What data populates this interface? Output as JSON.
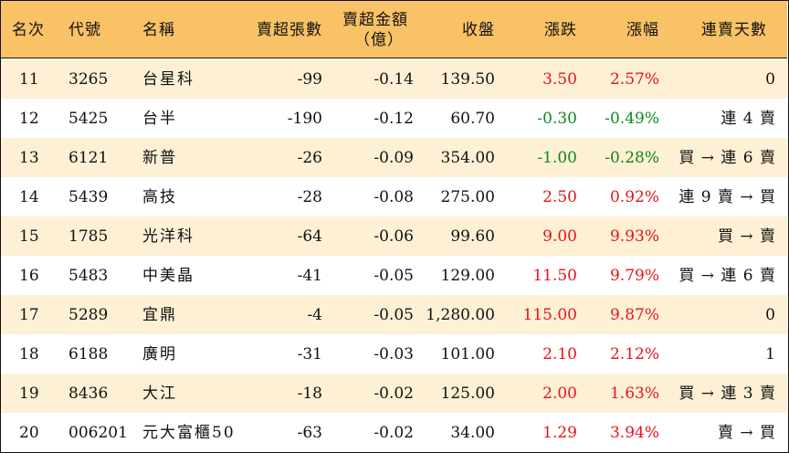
{
  "header": {
    "rank": "名次",
    "code": "代號",
    "name": "名稱",
    "oversold_lots": "賣超張數",
    "oversold_amount_line1": "賣超金額",
    "oversold_amount_line2": "（億）",
    "close": "收盤",
    "change": "漲跌",
    "change_pct": "漲幅",
    "consecutive_days": "連賣天數"
  },
  "colors": {
    "header_bg": "#f9c266",
    "stripe_bg": "#fdf0d5",
    "up": "#e8131a",
    "down": "#0d8a1a"
  },
  "rows": [
    {
      "rank": "11",
      "code": "3265",
      "name": "台星科",
      "lots": "-99",
      "amount": "-0.14",
      "close": "139.50",
      "change": "3.50",
      "pct": "2.57%",
      "trend": "up",
      "days": "0"
    },
    {
      "rank": "12",
      "code": "5425",
      "name": "台半",
      "lots": "-190",
      "amount": "-0.12",
      "close": "60.70",
      "change": "-0.30",
      "pct": "-0.49%",
      "trend": "down",
      "days": "連 4 賣"
    },
    {
      "rank": "13",
      "code": "6121",
      "name": "新普",
      "lots": "-26",
      "amount": "-0.09",
      "close": "354.00",
      "change": "-1.00",
      "pct": "-0.28%",
      "trend": "down",
      "days": "買 → 連 6 賣"
    },
    {
      "rank": "14",
      "code": "5439",
      "name": "高技",
      "lots": "-28",
      "amount": "-0.08",
      "close": "275.00",
      "change": "2.50",
      "pct": "0.92%",
      "trend": "up",
      "days": "連 9 賣 → 買"
    },
    {
      "rank": "15",
      "code": "1785",
      "name": "光洋科",
      "lots": "-64",
      "amount": "-0.06",
      "close": "99.60",
      "change": "9.00",
      "pct": "9.93%",
      "trend": "up",
      "days": "買 → 賣"
    },
    {
      "rank": "16",
      "code": "5483",
      "name": "中美晶",
      "lots": "-41",
      "amount": "-0.05",
      "close": "129.00",
      "change": "11.50",
      "pct": "9.79%",
      "trend": "up",
      "days": "買 → 連 6 賣"
    },
    {
      "rank": "17",
      "code": "5289",
      "name": "宜鼎",
      "lots": "-4",
      "amount": "-0.05",
      "close": "1,280.00",
      "change": "115.00",
      "pct": "9.87%",
      "trend": "up",
      "days": "0"
    },
    {
      "rank": "18",
      "code": "6188",
      "name": "廣明",
      "lots": "-31",
      "amount": "-0.03",
      "close": "101.00",
      "change": "2.10",
      "pct": "2.12%",
      "trend": "up",
      "days": "1"
    },
    {
      "rank": "19",
      "code": "8436",
      "name": "大江",
      "lots": "-18",
      "amount": "-0.02",
      "close": "125.00",
      "change": "2.00",
      "pct": "1.63%",
      "trend": "up",
      "days": "買 → 連 3 賣"
    },
    {
      "rank": "20",
      "code": "006201",
      "name": "元大富櫃50",
      "lots": "-63",
      "amount": "-0.02",
      "close": "34.00",
      "change": "1.29",
      "pct": "3.94%",
      "trend": "up",
      "days": "賣 → 買"
    }
  ]
}
